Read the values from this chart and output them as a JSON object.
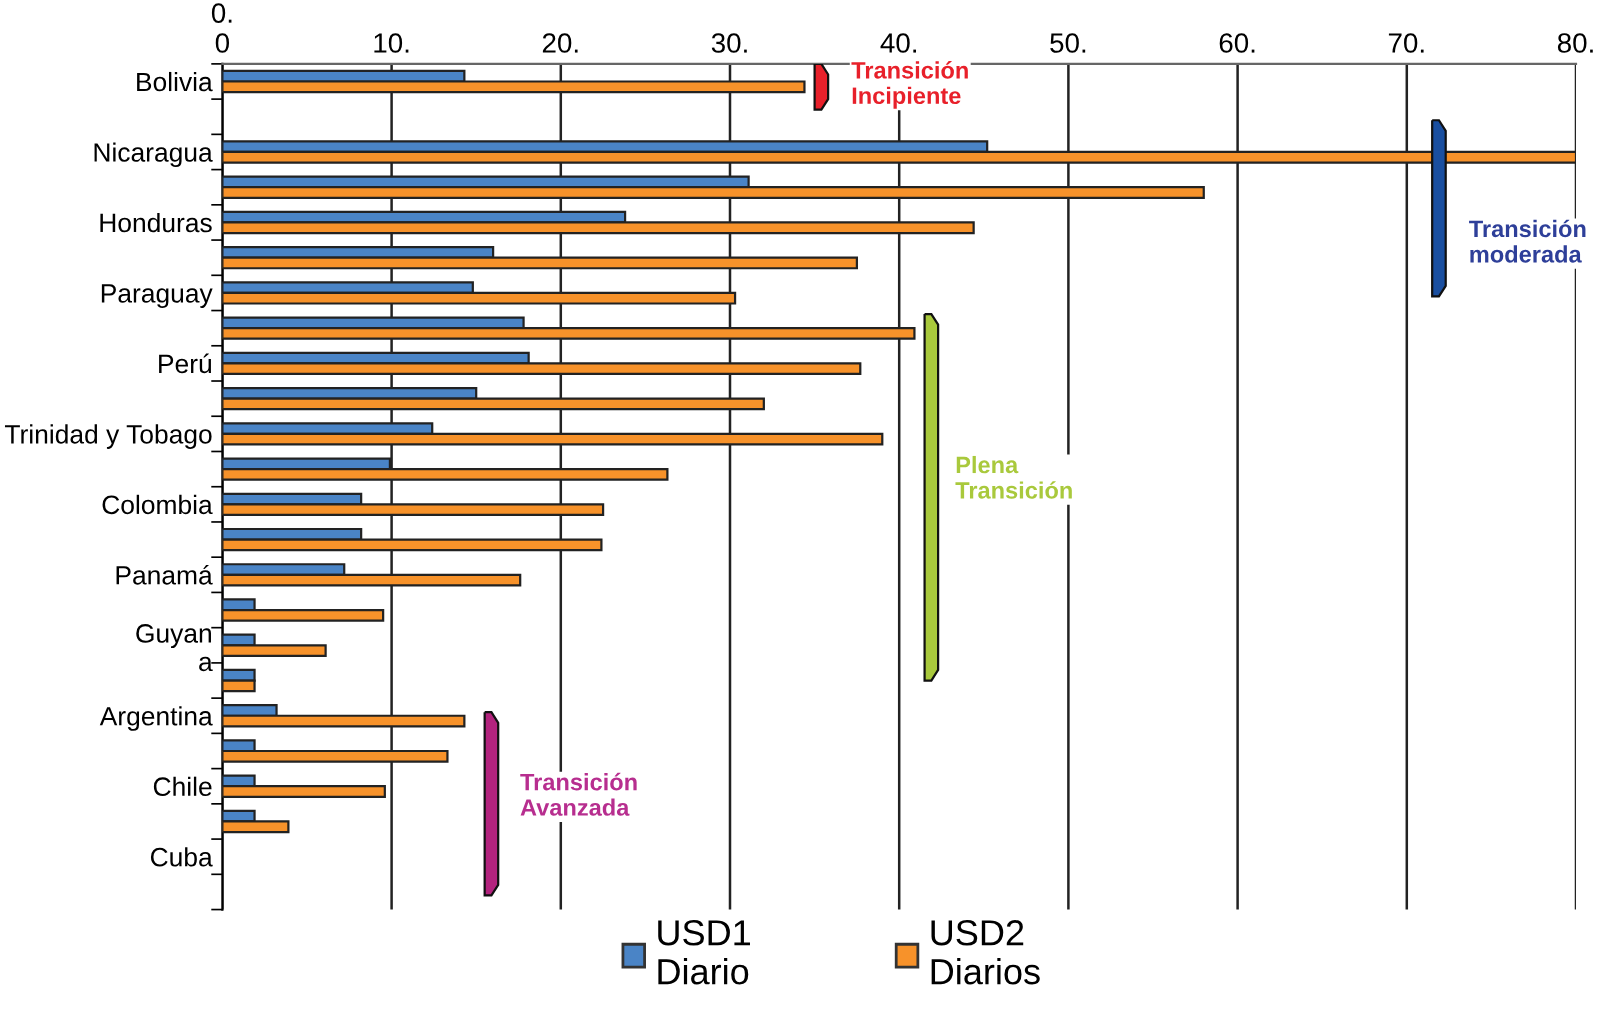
{
  "chart_data": {
    "type": "bar",
    "orientation": "horizontal",
    "categories": [
      "Bolivia",
      null,
      "Nicaragua",
      null,
      "Honduras",
      null,
      "Paraguay",
      null,
      "Perú",
      null,
      "Trinidad y Tobago",
      null,
      "Colombia",
      null,
      "Panamá",
      null,
      "Guyan\na",
      null,
      "Argentina",
      null,
      "Chile",
      null,
      "Cuba",
      null
    ],
    "series": [
      {
        "name": "USD1\nDiario",
        "color": "#4a84c6",
        "values": [
          14.3,
          null,
          45.2,
          31.1,
          23.8,
          16.0,
          14.8,
          17.8,
          18.1,
          15.0,
          12.4,
          9.9,
          8.2,
          8.2,
          7.2,
          1.9,
          1.9,
          1.9,
          3.2,
          1.9,
          1.9,
          1.9,
          null,
          null
        ]
      },
      {
        "name": "USD2\nDiarios",
        "color": "#f7922a",
        "values": [
          34.4,
          null,
          80,
          58.0,
          44.4,
          37.5,
          30.3,
          40.9,
          37.7,
          32.0,
          39.0,
          26.3,
          22.5,
          22.4,
          17.6,
          9.5,
          6.1,
          1.9,
          14.3,
          13.3,
          9.6,
          3.9,
          null,
          null
        ]
      }
    ],
    "xlim": [
      0,
      80
    ],
    "xticks": [
      {
        "value": 0,
        "label": "0.\n0"
      },
      {
        "value": 10,
        "label": "10."
      },
      {
        "value": 20,
        "label": "20."
      },
      {
        "value": 30,
        "label": "30."
      },
      {
        "value": 40,
        "label": "40."
      },
      {
        "value": 50,
        "label": "50."
      },
      {
        "value": 60,
        "label": "60."
      },
      {
        "value": 70,
        "label": "70."
      },
      {
        "value": 80,
        "label": "80."
      }
    ],
    "grid": "x",
    "legend": "bottom",
    "annotations": [
      "Transición\nIncipiente",
      "Transición\nmoderada",
      "Plena\nTransición",
      "Transición\nAvanzada"
    ]
  }
}
